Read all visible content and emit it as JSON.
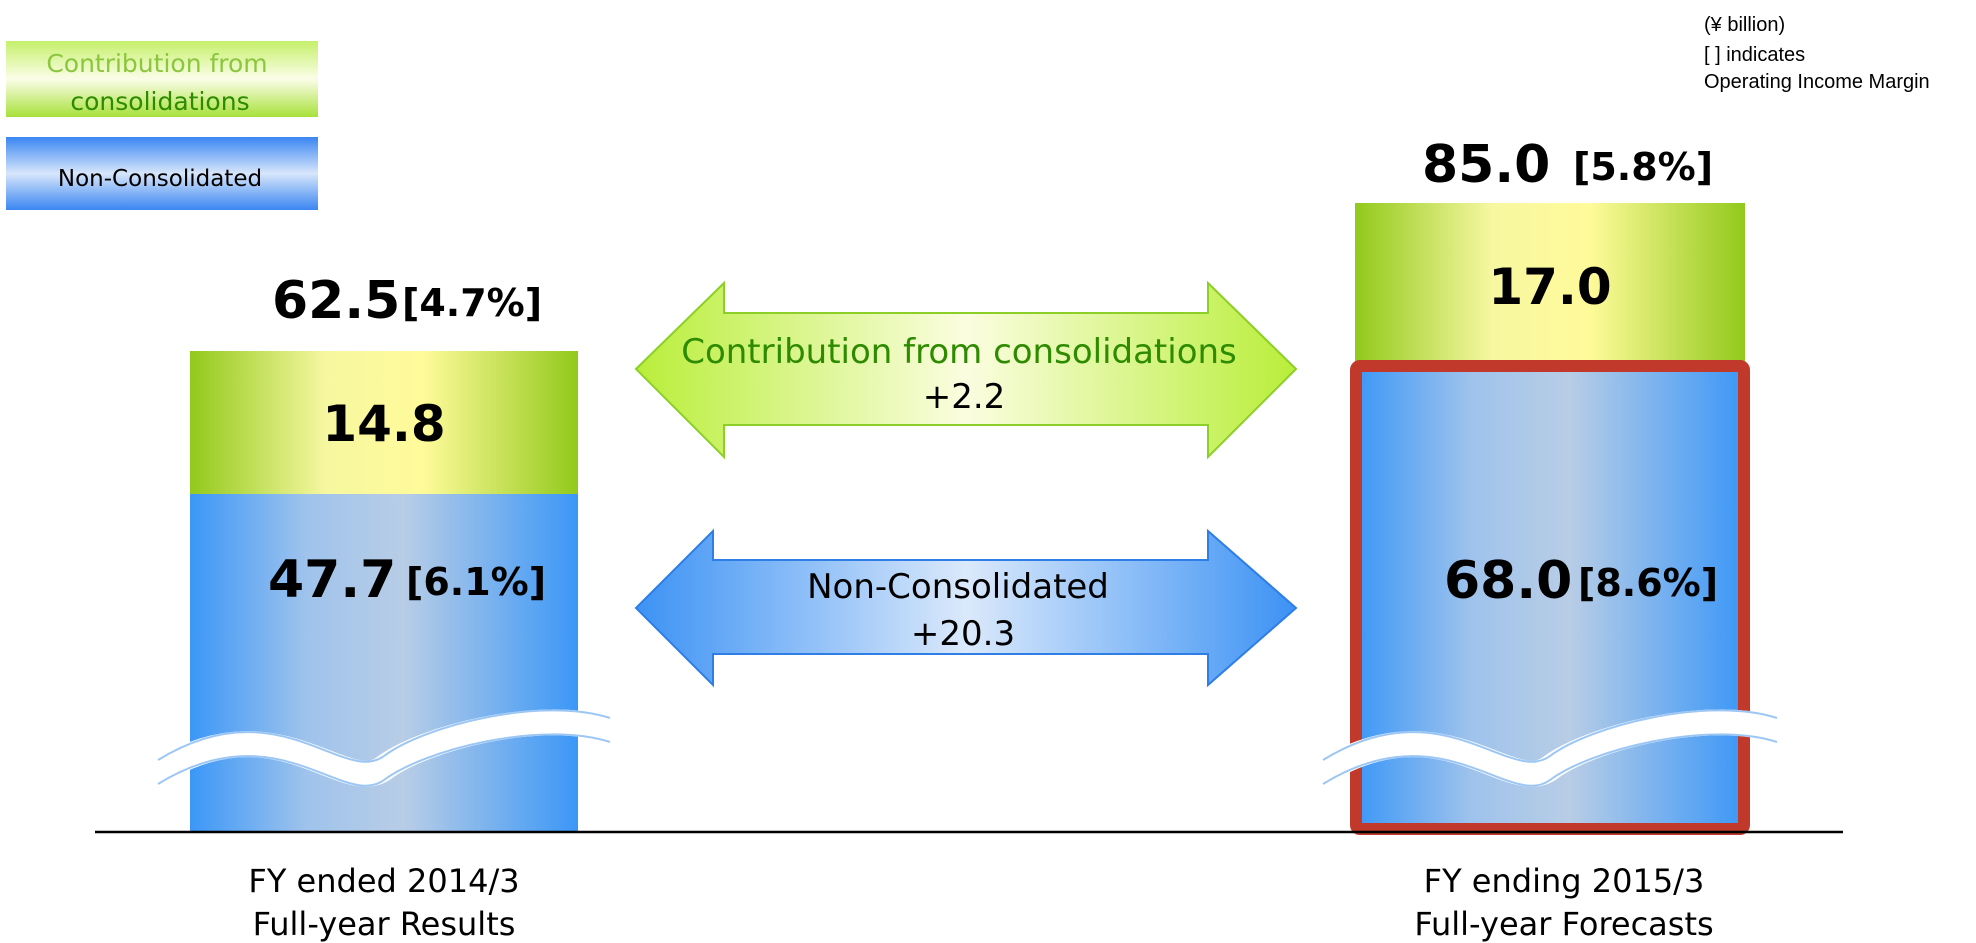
{
  "unit_note": {
    "line1": "(¥ billion)",
    "line2": "[    ] indicates",
    "line3": "Operating Income Margin"
  },
  "legend": [
    {
      "label_line1": "Contribution from",
      "label_line2": "consolidations",
      "color": "#8cc63f"
    },
    {
      "label": "Non-Consolidated",
      "color": "#3399ff"
    }
  ],
  "arrows": {
    "consolidations": {
      "line1": "Contribution from consolidations",
      "line2": "+2.2",
      "color": "#2e8b00"
    },
    "non_consolidated": {
      "line1": "Non-Consolidated",
      "line2": "+20.3",
      "color": "#000000"
    }
  },
  "chart_data": {
    "type": "bar",
    "stacked": true,
    "axis_broken": true,
    "categories": [
      {
        "line1": "FY ended 2014/3",
        "line2": "Full-year Results"
      },
      {
        "line1": "FY ending 2015/3",
        "line2": "Full-year Forecasts"
      }
    ],
    "series": [
      {
        "name": "Non-Consolidated",
        "values": [
          47.7,
          68.0
        ],
        "margins": [
          "[6.1%]",
          "[8.6%]"
        ],
        "value_labels": [
          "47.7",
          "68.0"
        ]
      },
      {
        "name": "Contribution from consolidations",
        "values": [
          14.8,
          17.0
        ],
        "value_labels": [
          "14.8",
          "17.0"
        ]
      }
    ],
    "totals": {
      "value_labels": [
        "62.5",
        "85.0"
      ],
      "margins": [
        "[4.7%]",
        "[5.8%]"
      ]
    },
    "highlight_series_in_category": "Non-Consolidated / FY ending 2015/3"
  }
}
